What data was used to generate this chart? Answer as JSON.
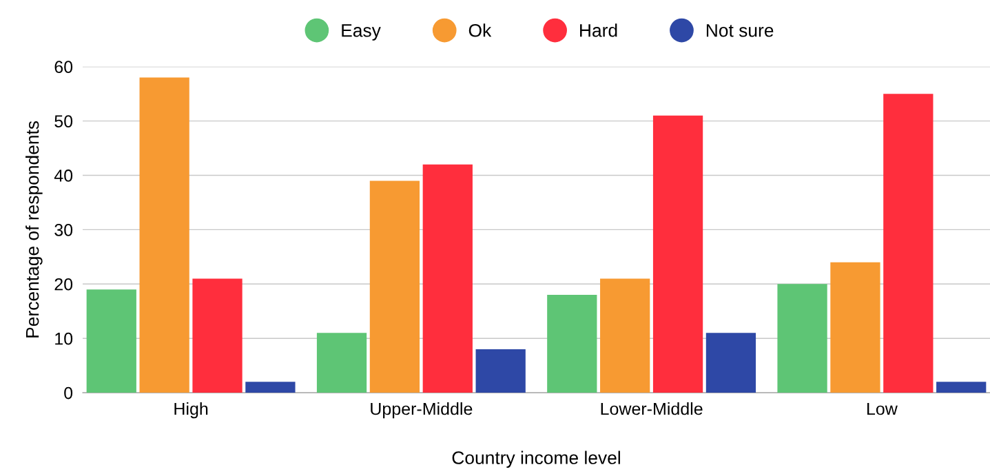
{
  "chart_data": {
    "type": "bar",
    "xlabel": "Country income level",
    "ylabel": "Percentage of respondents",
    "categories": [
      "High",
      "Upper-Middle",
      "Lower-Middle",
      "Low"
    ],
    "series": [
      {
        "name": "Easy",
        "color": "#5ec575",
        "values": [
          19,
          11,
          18,
          20
        ]
      },
      {
        "name": "Ok",
        "color": "#f79a32",
        "values": [
          58,
          39,
          21,
          24
        ]
      },
      {
        "name": "Hard",
        "color": "#ff2e3d",
        "values": [
          21,
          42,
          51,
          55
        ]
      },
      {
        "name": "Not sure",
        "color": "#2e48a6",
        "values": [
          2,
          8,
          11,
          2
        ]
      }
    ],
    "ylim": [
      0,
      60
    ],
    "yticks": [
      0,
      10,
      20,
      30,
      40,
      50,
      60
    ],
    "grid": "y",
    "legend": "top"
  }
}
